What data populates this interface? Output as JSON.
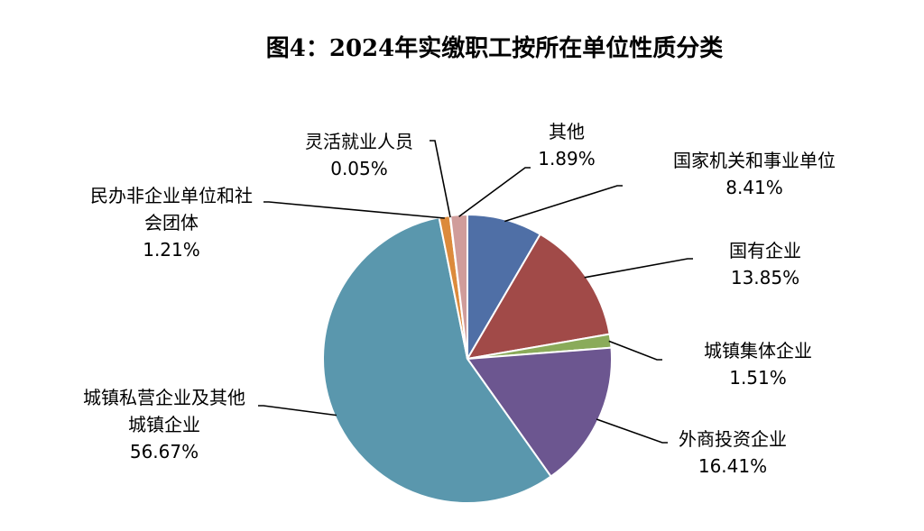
{
  "chart_data": {
    "type": "pie",
    "title": "图4：2024年实缴职工按所在单位性质分类",
    "slices": [
      {
        "label_lines": [
          "国家机关和事业单位"
        ],
        "value": 8.41,
        "value_label": "8.41%",
        "color": "#4f6fa6"
      },
      {
        "label_lines": [
          "国有企业"
        ],
        "value": 13.85,
        "value_label": "13.85%",
        "color": "#a14a48"
      },
      {
        "label_lines": [
          "城镇集体企业"
        ],
        "value": 1.51,
        "value_label": "1.51%",
        "color": "#8aab5a"
      },
      {
        "label_lines": [
          "外商投资企业"
        ],
        "value": 16.41,
        "value_label": "16.41%",
        "color": "#6c5690"
      },
      {
        "label_lines": [
          "城镇私营企业及其他",
          "城镇企业"
        ],
        "value": 56.67,
        "value_label": "56.67%",
        "color": "#5a97ad"
      },
      {
        "label_lines": [
          "民办非企业单位和社",
          "会团体"
        ],
        "value": 1.21,
        "value_label": "1.21%",
        "color": "#dc8a3c"
      },
      {
        "label_lines": [
          "灵活就业人员"
        ],
        "value": 0.05,
        "value_label": "0.05%",
        "color": "#8fa3c6"
      },
      {
        "label_lines": [
          "其他"
        ],
        "value": 1.89,
        "value_label": "1.89%",
        "color": "#d09c9a"
      }
    ]
  }
}
